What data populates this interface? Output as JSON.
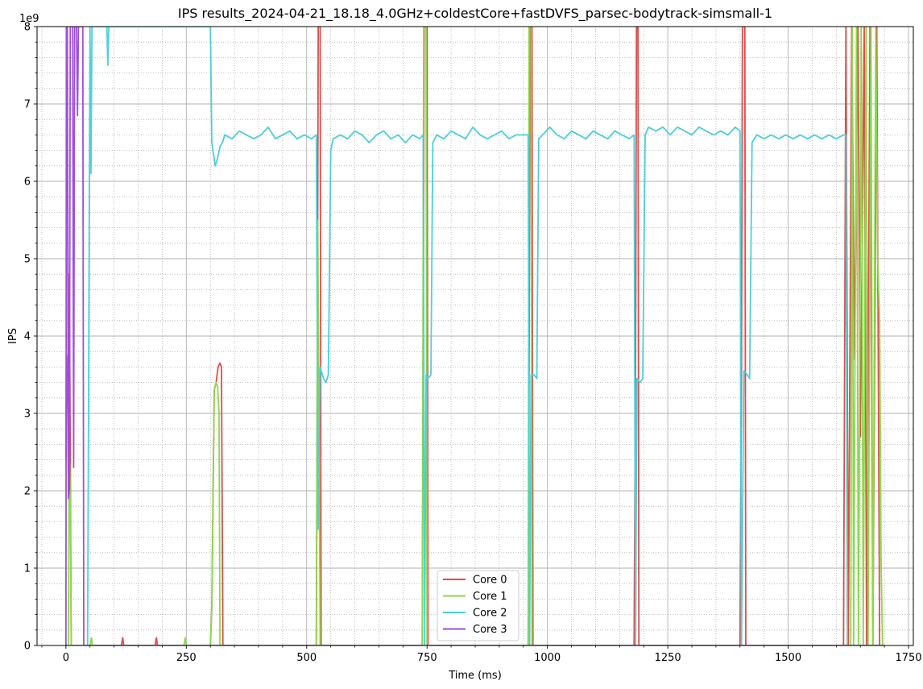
{
  "chart_data": {
    "type": "line",
    "title": "IPS results_2024-04-21_18.18_4.0GHz+coldestCore+fastDVFS_parsec-bodytrack-simsmall-1",
    "xlabel": "Time (ms)",
    "ylabel": "IPS",
    "y_scale_label": "1e9",
    "xlim": [
      -60,
      1760
    ],
    "ylim": [
      0,
      8
    ],
    "x_ticks": [
      0,
      250,
      500,
      750,
      1000,
      1250,
      1500,
      1750
    ],
    "x_tick_labels": [
      "0",
      "250",
      "500",
      "750",
      "1000",
      "1250",
      "1500",
      "1750"
    ],
    "y_ticks": [
      0,
      1,
      2,
      3,
      4,
      5,
      6,
      7,
      8
    ],
    "y_tick_labels": [
      "0",
      "1",
      "2",
      "3",
      "4",
      "5",
      "6",
      "7",
      "8"
    ],
    "grid": true,
    "minor_grid": true,
    "legend_position": "bottom-center",
    "series": [
      {
        "name": "Core 0",
        "color": "#e24a4a",
        "points": [
          [
            0,
            2.4
          ],
          [
            1,
            3.75
          ],
          [
            3,
            3.5
          ],
          [
            5,
            2.2
          ],
          [
            7,
            4.8
          ],
          [
            9,
            2.5
          ],
          [
            11,
            0
          ],
          [
            30,
            0
          ],
          [
            115,
            0
          ],
          [
            118,
            0.1
          ],
          [
            120,
            0
          ],
          [
            185,
            0
          ],
          [
            188,
            0.1
          ],
          [
            190,
            0
          ],
          [
            300,
            0
          ],
          [
            303,
            0.5
          ],
          [
            308,
            3.3
          ],
          [
            312,
            3.4
          ],
          [
            316,
            3.6
          ],
          [
            320,
            3.65
          ],
          [
            323,
            3.6
          ],
          [
            326,
            0
          ],
          [
            520,
            0
          ],
          [
            522,
            3.5
          ],
          [
            524,
            8
          ],
          [
            528,
            8
          ],
          [
            530,
            0
          ],
          [
            740,
            0
          ],
          [
            742,
            3.5
          ],
          [
            744,
            8
          ],
          [
            750,
            8
          ],
          [
            752,
            0
          ],
          [
            960,
            0
          ],
          [
            962,
            3.5
          ],
          [
            964,
            8
          ],
          [
            968,
            8
          ],
          [
            970,
            0
          ],
          [
            1180,
            0
          ],
          [
            1183,
            3.5
          ],
          [
            1185,
            8
          ],
          [
            1188,
            8
          ],
          [
            1190,
            0
          ],
          [
            1400,
            0
          ],
          [
            1403,
            3.5
          ],
          [
            1405,
            8
          ],
          [
            1410,
            8
          ],
          [
            1412,
            0
          ],
          [
            1615,
            0
          ],
          [
            1620,
            8
          ],
          [
            1625,
            0
          ],
          [
            1632,
            8
          ],
          [
            1638,
            3.7
          ],
          [
            1645,
            8
          ],
          [
            1650,
            2.7
          ],
          [
            1658,
            8
          ],
          [
            1663,
            0
          ],
          [
            1670,
            8
          ],
          [
            1676,
            0
          ],
          [
            1684,
            8
          ],
          [
            1690,
            0
          ],
          [
            1700,
            0
          ]
        ]
      },
      {
        "name": "Core 1",
        "color": "#8ad94a",
        "points": [
          [
            0,
            0
          ],
          [
            5,
            0
          ],
          [
            7,
            2.5
          ],
          [
            9,
            1.9
          ],
          [
            11,
            0
          ],
          [
            50,
            0
          ],
          [
            53,
            0.1
          ],
          [
            55,
            0
          ],
          [
            245,
            0
          ],
          [
            248,
            0.1
          ],
          [
            250,
            0
          ],
          [
            300,
            0
          ],
          [
            303,
            0.5
          ],
          [
            308,
            3.3
          ],
          [
            312,
            3.4
          ],
          [
            315,
            3.35
          ],
          [
            318,
            3.0
          ],
          [
            320,
            0
          ],
          [
            520,
            0
          ],
          [
            523,
            5.5
          ],
          [
            525,
            3.5
          ],
          [
            528,
            0
          ],
          [
            740,
            0
          ],
          [
            743,
            8
          ],
          [
            748,
            8
          ],
          [
            750,
            0
          ],
          [
            960,
            0
          ],
          [
            962,
            8
          ],
          [
            966,
            8
          ],
          [
            968,
            0
          ],
          [
            1630,
            0
          ],
          [
            1633,
            8
          ],
          [
            1636,
            0
          ],
          [
            1642,
            8
          ],
          [
            1646,
            0
          ],
          [
            1652,
            8
          ],
          [
            1656,
            0
          ],
          [
            1662,
            8
          ],
          [
            1666,
            0
          ],
          [
            1672,
            8
          ],
          [
            1676,
            0
          ],
          [
            1682,
            8
          ],
          [
            1686,
            5.0
          ],
          [
            1690,
            4.2
          ],
          [
            1693,
            1.1
          ],
          [
            1696,
            0
          ],
          [
            1700,
            0
          ]
        ]
      },
      {
        "name": "Core 2",
        "color": "#4ecfd8",
        "points": [
          [
            0,
            0
          ],
          [
            45,
            0
          ],
          [
            50,
            8
          ],
          [
            52,
            6.1
          ],
          [
            54,
            8
          ],
          [
            85,
            8
          ],
          [
            87,
            7.5
          ],
          [
            89,
            8
          ],
          [
            300,
            8
          ],
          [
            303,
            6.5
          ],
          [
            310,
            6.2
          ],
          [
            315,
            6.3
          ],
          [
            320,
            6.45
          ],
          [
            325,
            6.5
          ],
          [
            330,
            6.6
          ],
          [
            345,
            6.55
          ],
          [
            360,
            6.65
          ],
          [
            375,
            6.6
          ],
          [
            390,
            6.55
          ],
          [
            405,
            6.6
          ],
          [
            420,
            6.7
          ],
          [
            435,
            6.55
          ],
          [
            450,
            6.6
          ],
          [
            465,
            6.65
          ],
          [
            480,
            6.55
          ],
          [
            495,
            6.6
          ],
          [
            510,
            6.55
          ],
          [
            520,
            6.6
          ],
          [
            524,
            1.5
          ],
          [
            528,
            3.6
          ],
          [
            535,
            3.45
          ],
          [
            540,
            3.4
          ],
          [
            545,
            3.5
          ],
          [
            550,
            6.4
          ],
          [
            555,
            6.55
          ],
          [
            570,
            6.6
          ],
          [
            585,
            6.55
          ],
          [
            600,
            6.65
          ],
          [
            615,
            6.6
          ],
          [
            630,
            6.5
          ],
          [
            645,
            6.6
          ],
          [
            660,
            6.65
          ],
          [
            675,
            6.55
          ],
          [
            690,
            6.6
          ],
          [
            705,
            6.5
          ],
          [
            720,
            6.6
          ],
          [
            735,
            6.55
          ],
          [
            742,
            6.6
          ],
          [
            745,
            0
          ],
          [
            748,
            3.5
          ],
          [
            752,
            3.45
          ],
          [
            758,
            3.5
          ],
          [
            762,
            6.5
          ],
          [
            770,
            6.6
          ],
          [
            785,
            6.55
          ],
          [
            800,
            6.65
          ],
          [
            815,
            6.6
          ],
          [
            830,
            6.55
          ],
          [
            845,
            6.7
          ],
          [
            860,
            6.6
          ],
          [
            875,
            6.55
          ],
          [
            890,
            6.6
          ],
          [
            905,
            6.65
          ],
          [
            920,
            6.55
          ],
          [
            935,
            6.6
          ],
          [
            950,
            6.6
          ],
          [
            960,
            6.6
          ],
          [
            963,
            0
          ],
          [
            966,
            3.5
          ],
          [
            972,
            3.5
          ],
          [
            978,
            3.45
          ],
          [
            982,
            6.55
          ],
          [
            990,
            6.6
          ],
          [
            1005,
            6.7
          ],
          [
            1020,
            6.6
          ],
          [
            1035,
            6.55
          ],
          [
            1050,
            6.65
          ],
          [
            1065,
            6.6
          ],
          [
            1080,
            6.55
          ],
          [
            1095,
            6.65
          ],
          [
            1110,
            6.6
          ],
          [
            1125,
            6.55
          ],
          [
            1140,
            6.65
          ],
          [
            1155,
            6.6
          ],
          [
            1170,
            6.55
          ],
          [
            1180,
            6.6
          ],
          [
            1183,
            0
          ],
          [
            1186,
            3.45
          ],
          [
            1192,
            3.4
          ],
          [
            1198,
            3.45
          ],
          [
            1203,
            6.6
          ],
          [
            1210,
            6.7
          ],
          [
            1225,
            6.65
          ],
          [
            1240,
            6.7
          ],
          [
            1255,
            6.6
          ],
          [
            1270,
            6.7
          ],
          [
            1285,
            6.65
          ],
          [
            1300,
            6.6
          ],
          [
            1315,
            6.7
          ],
          [
            1330,
            6.65
          ],
          [
            1345,
            6.6
          ],
          [
            1360,
            6.65
          ],
          [
            1375,
            6.6
          ],
          [
            1390,
            6.7
          ],
          [
            1400,
            6.65
          ],
          [
            1403,
            0
          ],
          [
            1408,
            3.55
          ],
          [
            1415,
            3.5
          ],
          [
            1420,
            3.45
          ],
          [
            1425,
            6.5
          ],
          [
            1435,
            6.6
          ],
          [
            1450,
            6.55
          ],
          [
            1465,
            6.6
          ],
          [
            1480,
            6.55
          ],
          [
            1495,
            6.6
          ],
          [
            1510,
            6.55
          ],
          [
            1525,
            6.6
          ],
          [
            1540,
            6.55
          ],
          [
            1555,
            6.6
          ],
          [
            1570,
            6.55
          ],
          [
            1585,
            6.6
          ],
          [
            1600,
            6.55
          ],
          [
            1615,
            6.6
          ],
          [
            1620,
            6.6
          ],
          [
            1623,
            0
          ],
          [
            1700,
            0
          ]
        ]
      },
      {
        "name": "Core 3",
        "color": "#9e4fdb",
        "points": [
          [
            0,
            0
          ],
          [
            1,
            8
          ],
          [
            3,
            8
          ],
          [
            5,
            1.9
          ],
          [
            7,
            2.0
          ],
          [
            9,
            8
          ],
          [
            12,
            8
          ],
          [
            14,
            8
          ],
          [
            16,
            2.3
          ],
          [
            18,
            8
          ],
          [
            20,
            8
          ],
          [
            22,
            8
          ],
          [
            24,
            6.85
          ],
          [
            26,
            8
          ],
          [
            35,
            8
          ],
          [
            37,
            0
          ],
          [
            300,
            0
          ],
          [
            305,
            0
          ],
          [
            1700,
            0
          ]
        ]
      }
    ]
  }
}
